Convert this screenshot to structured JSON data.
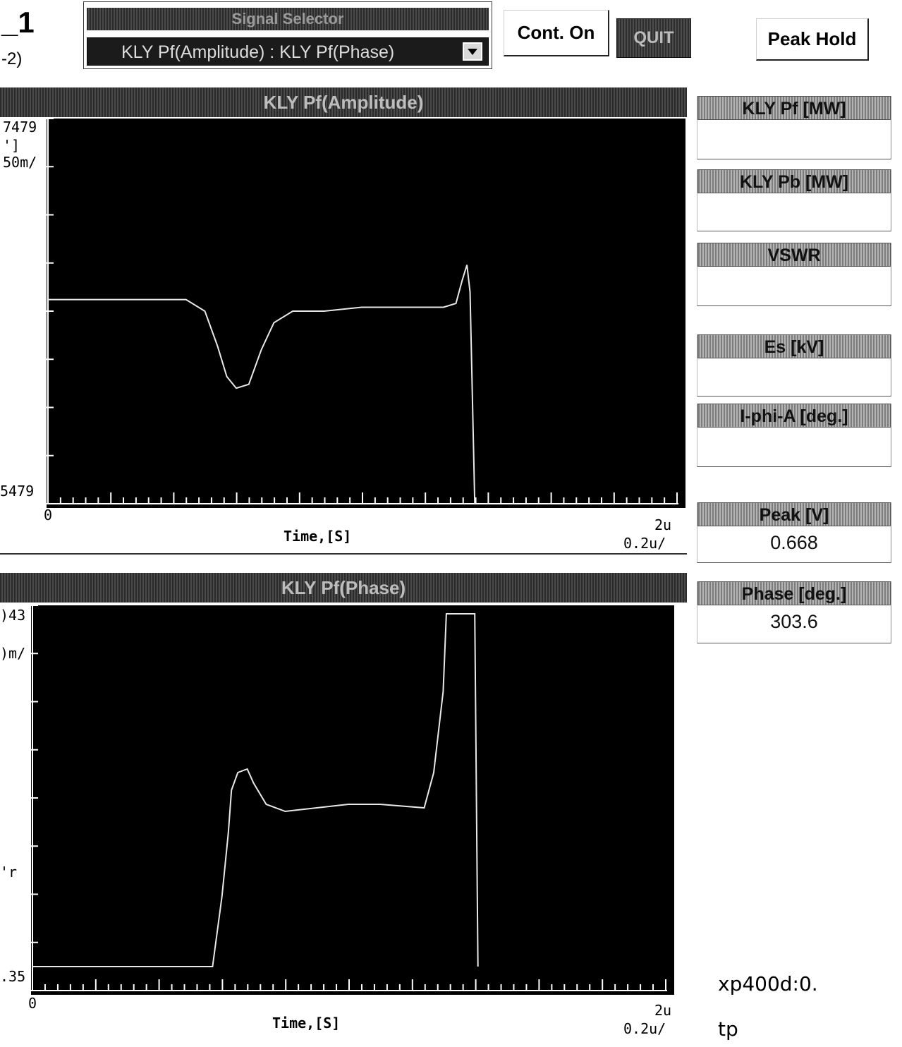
{
  "header": {
    "big_label": "_1",
    "small_label": "-2)"
  },
  "signal_selector": {
    "title": "Signal Selector",
    "value": "KLY Pf(Amplitude) : KLY Pf(Phase)"
  },
  "toolbar": {
    "cont_label": "Cont. On",
    "quit_label": "QUIT",
    "peak_hold_label": "Peak Hold"
  },
  "amplitude_panel": {
    "title": "KLY Pf(Amplitude)",
    "y_top": "7479",
    "y_unit": "']",
    "y_div": "50m/",
    "y_bottom": "5479",
    "x_start": "0",
    "x_end": "2u",
    "x_label": "Time,[S]",
    "x_div": "0.2u/"
  },
  "phase_panel": {
    "title": "KLY Pf(Phase)",
    "y_top": ")43",
    "y_div": ")m/",
    "y_unit": "'r",
    "y_bottom": ".35",
    "x_start": "0",
    "x_end": "2u",
    "x_label": "Time,[S]",
    "x_div": "0.2u/"
  },
  "readouts": {
    "kly_pf_title": "KLY Pf [MW]",
    "kly_pf_value": "",
    "kly_pb_title": "KLY Pb [MW]",
    "kly_pb_value": "",
    "vswr_title": "VSWR",
    "vswr_value": "",
    "es_title": "Es [kV]",
    "es_value": "",
    "iphia_title": "I-phi-A [deg.]",
    "iphia_value": "",
    "peak_title": "Peak [V]",
    "peak_value": "0.668",
    "phase_title": "Phase [deg.]",
    "phase_value": "303.6"
  },
  "footer": {
    "host": "xp400d:0.",
    "tp": "tp"
  },
  "colors": {
    "trace": "#e8e8e8",
    "plot_bg": "#000000",
    "tick": "#ffffff"
  },
  "chart_data": [
    {
      "type": "line",
      "title": "KLY Pf(Amplitude)",
      "xlabel": "Time,[S]",
      "xlim": [
        0,
        2.0
      ],
      "x_unit": "us",
      "grid": false,
      "series": [
        {
          "x": [
            0.0,
            0.44,
            0.5,
            0.54,
            0.57,
            0.6,
            0.64,
            0.68,
            0.72,
            0.78,
            0.88,
            1.0,
            1.12,
            1.26,
            1.3,
            1.32,
            1.335,
            1.345,
            1.36
          ],
          "y": [
            0.53,
            0.53,
            0.5,
            0.41,
            0.33,
            0.3,
            0.31,
            0.4,
            0.47,
            0.5,
            0.5,
            0.51,
            0.51,
            0.51,
            0.52,
            0.58,
            0.62,
            0.55,
            0.0
          ]
        }
      ]
    },
    {
      "type": "line",
      "title": "KLY Pf(Phase)",
      "xlabel": "Time,[S]",
      "xlim": [
        0,
        2.0
      ],
      "x_unit": "us",
      "grid": false,
      "series": [
        {
          "x": [
            0.0,
            0.57,
            0.6,
            0.62,
            0.63,
            0.65,
            0.68,
            0.7,
            0.74,
            0.8,
            0.9,
            1.0,
            1.1,
            1.24,
            1.27,
            1.3,
            1.31,
            1.4,
            1.41
          ],
          "y": [
            0.0,
            0.0,
            0.2,
            0.38,
            0.5,
            0.55,
            0.56,
            0.52,
            0.46,
            0.44,
            0.45,
            0.46,
            0.46,
            0.45,
            0.55,
            0.78,
            1.0,
            1.0,
            0.0
          ]
        }
      ]
    }
  ]
}
